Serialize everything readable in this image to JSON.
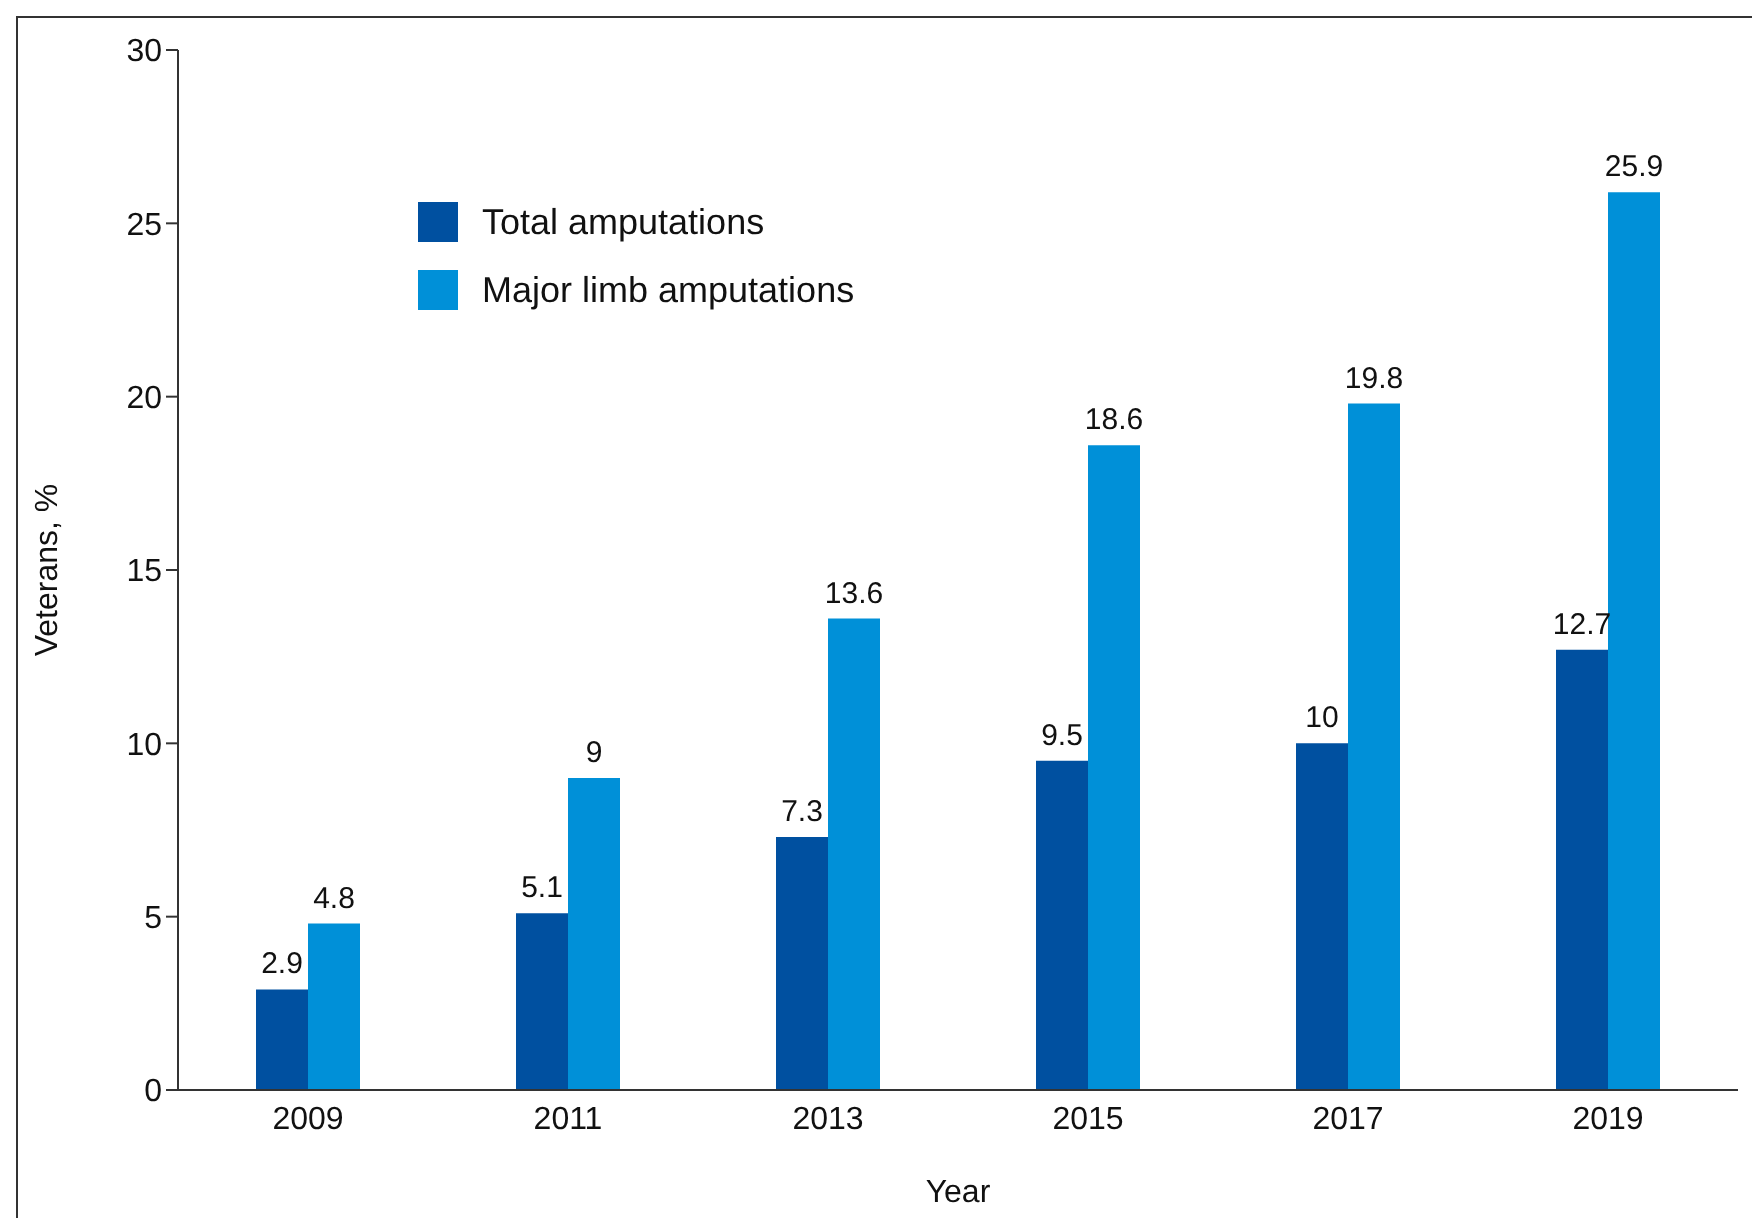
{
  "chart_data": {
    "type": "bar",
    "xlabel": "Year",
    "ylabel": "Veterans, %",
    "categories": [
      "2009",
      "2011",
      "2013",
      "2015",
      "2017",
      "2019"
    ],
    "series": [
      {
        "name": "Total amputations",
        "color": "#0050a0",
        "values": [
          2.9,
          5.1,
          7.3,
          9.5,
          10,
          12.7
        ]
      },
      {
        "name": "Major limb amputations",
        "color": "#0090d8",
        "values": [
          4.8,
          9,
          13.6,
          18.6,
          19.8,
          25.9
        ]
      }
    ],
    "ylim": [
      0,
      30
    ],
    "yticks": [
      0,
      5,
      10,
      15,
      20,
      25,
      30
    ],
    "grid": false,
    "legend": "top left",
    "data_labels": true
  }
}
